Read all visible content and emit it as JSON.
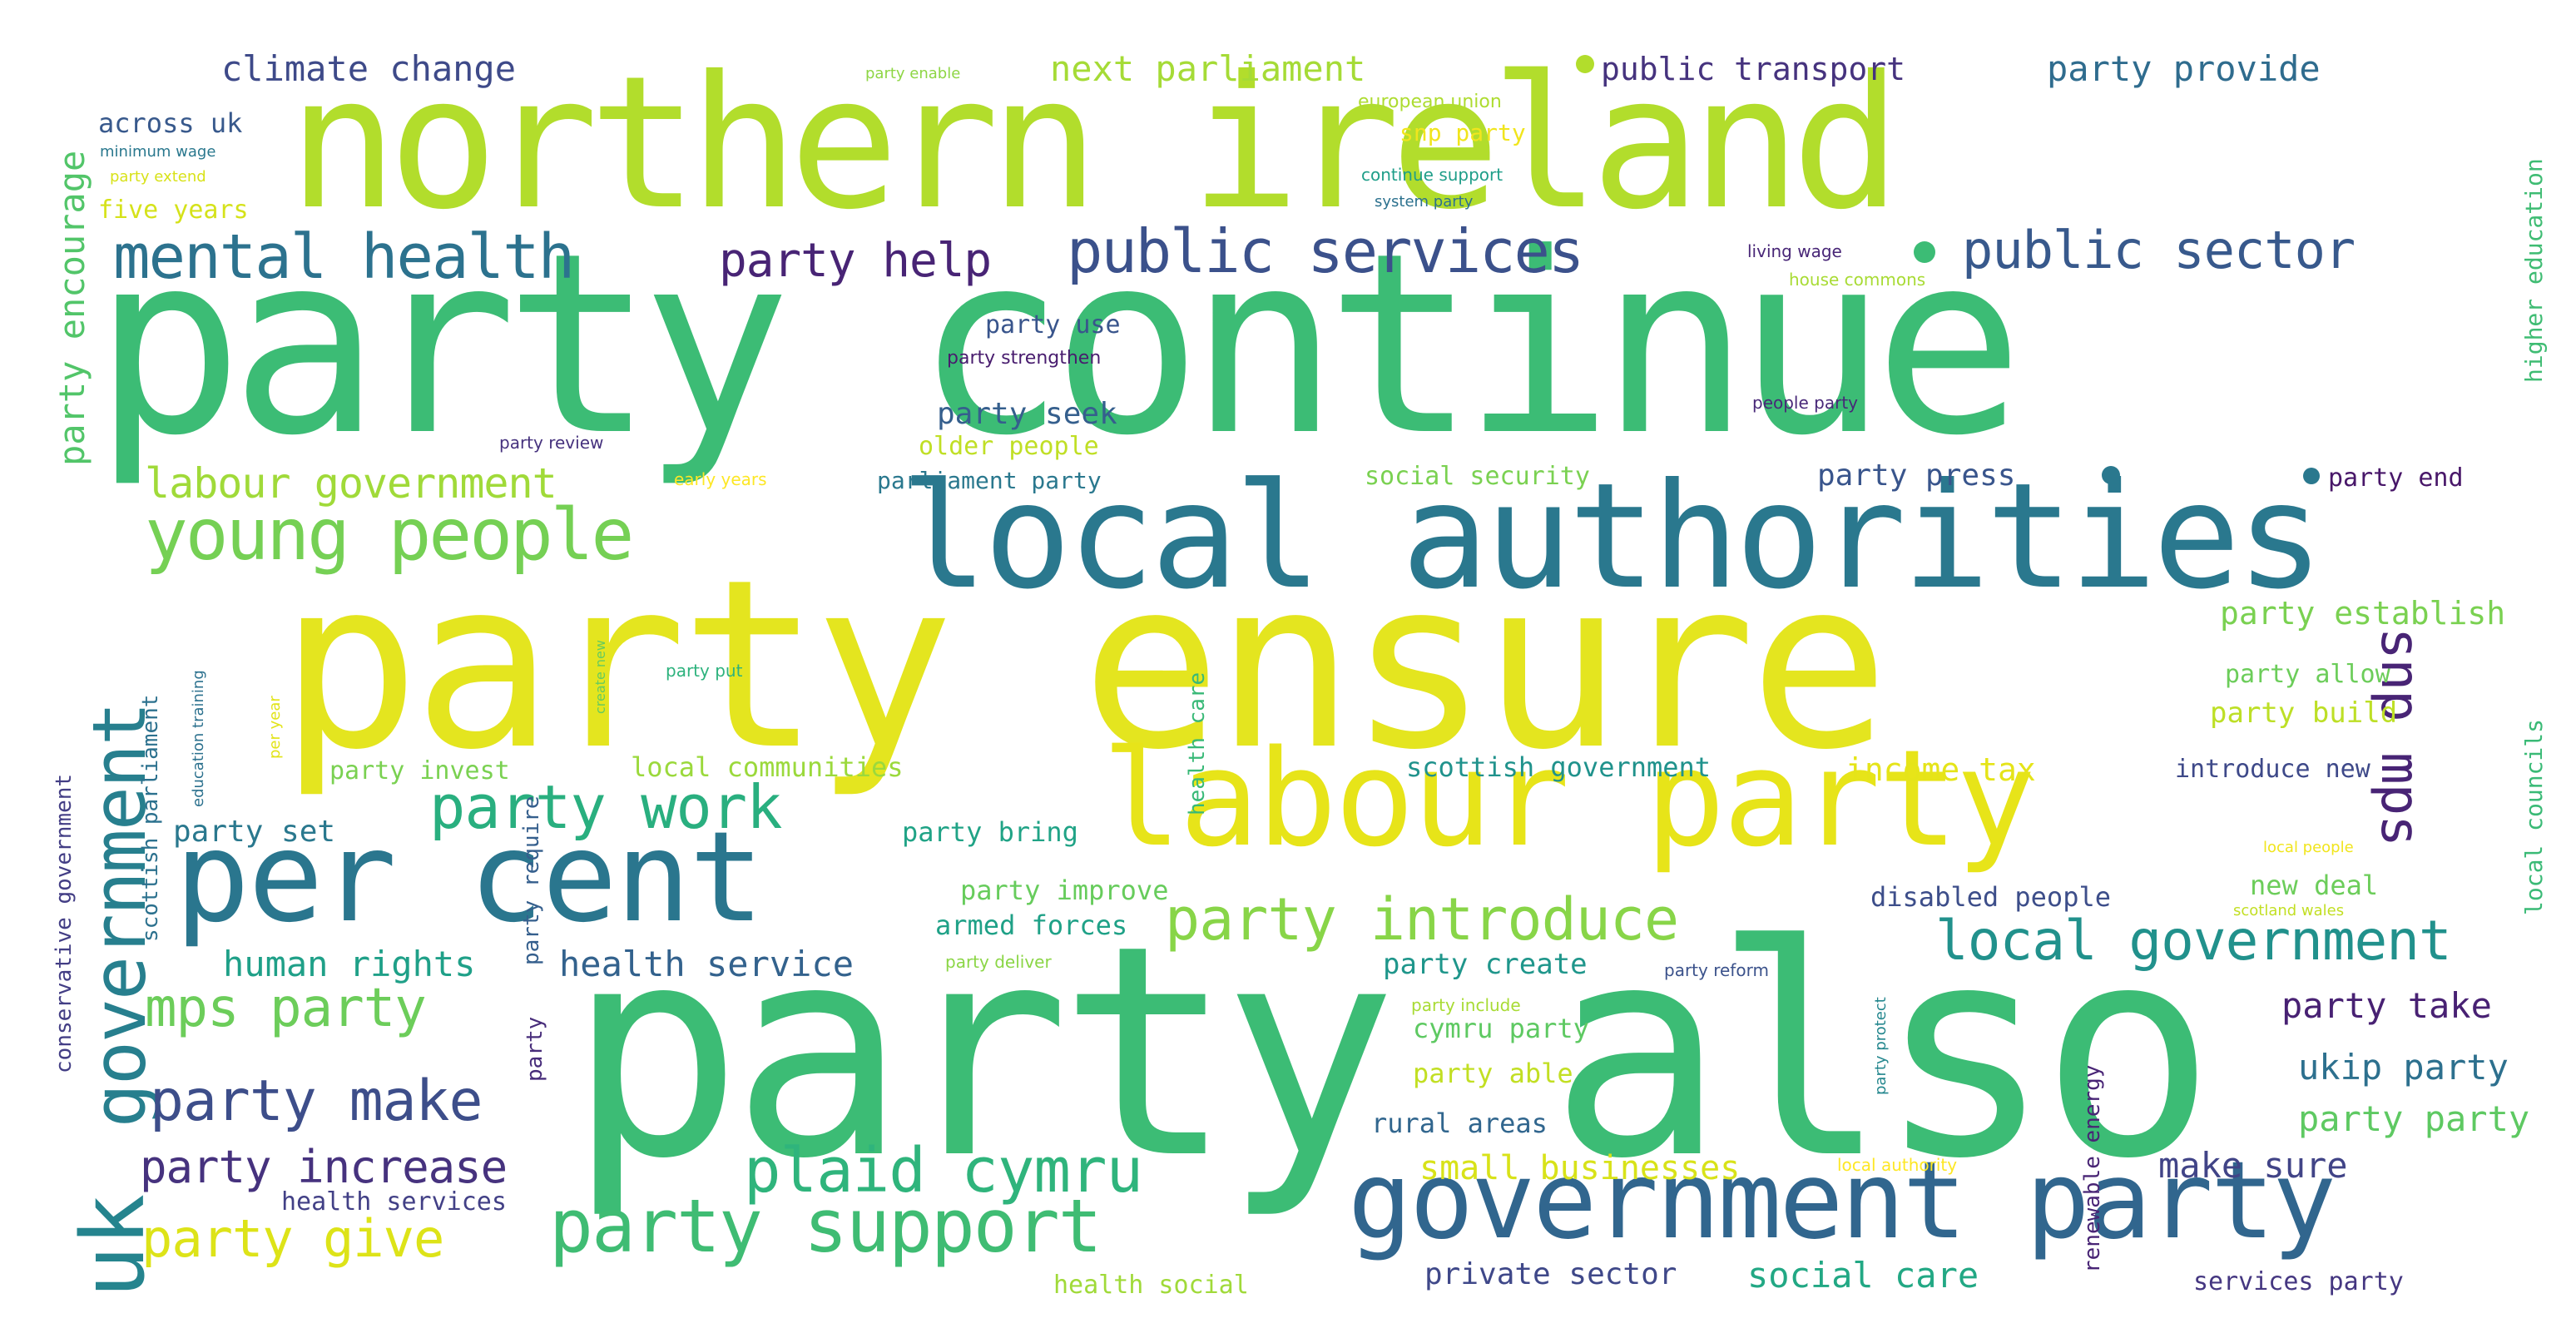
{
  "phrases": [
    {
      "text": "party also",
      "color": "#3cbc75"
    },
    {
      "text": "party continue",
      "color": "#3cbc75"
    },
    {
      "text": "party ensure",
      "color": "#e4e51f"
    },
    {
      "text": "northern ireland",
      "color": "#b2dd2c"
    },
    {
      "text": "local authorities",
      "color": "#2a788e"
    },
    {
      "text": "labour party",
      "color": "#e7e419"
    },
    {
      "text": "government party",
      "color": "#31668e"
    },
    {
      "text": "per cent",
      "color": "#2a768e"
    },
    {
      "text": "young people",
      "color": "#75d054"
    },
    {
      "text": "party support",
      "color": "#3fbc73"
    },
    {
      "text": "party introduce",
      "color": "#88d548"
    },
    {
      "text": "government",
      "color": "#277f8e"
    },
    {
      "text": "uk",
      "color": "#25848e"
    },
    {
      "text": "party work",
      "color": "#29af7f"
    },
    {
      "text": "plaid cymru",
      "color": "#2fb47c"
    },
    {
      "text": "mental health",
      "color": "#2c728e"
    },
    {
      "text": "public services",
      "color": "#3b518b"
    },
    {
      "text": "public sector",
      "color": "#38598c"
    },
    {
      "text": "local government",
      "color": "#21918c"
    },
    {
      "text": "party make",
      "color": "#3d4e8a"
    },
    {
      "text": "mps party",
      "color": "#6ccd5a"
    },
    {
      "text": "party give",
      "color": "#dde318"
    },
    {
      "text": "party increase",
      "color": "#46327e"
    },
    {
      "text": "snp mps",
      "color": "#482475"
    },
    {
      "text": "party help",
      "color": "#482475"
    },
    {
      "text": "labour government",
      "color": "#a0da39"
    },
    {
      "text": "climate change",
      "color": "#3e4a89"
    },
    {
      "text": "next parliament",
      "color": "#a5db36"
    },
    {
      "text": "public transport",
      "color": "#46337e"
    },
    {
      "text": "party provide",
      "color": "#2f6c8e"
    },
    {
      "text": "party encourage",
      "color": "#52c569"
    },
    {
      "text": "human rights",
      "color": "#1fa088"
    },
    {
      "text": "health service",
      "color": "#33628d"
    },
    {
      "text": "party take",
      "color": "#482173"
    },
    {
      "text": "ukip party",
      "color": "#2d708e"
    },
    {
      "text": "party party",
      "color": "#5ec962"
    },
    {
      "text": "make sure",
      "color": "#414487"
    },
    {
      "text": "small businesses",
      "color": "#d8e219"
    },
    {
      "text": "social care",
      "color": "#22a884"
    },
    {
      "text": "private sector",
      "color": "#3f4889"
    },
    {
      "text": "party seek",
      "color": "#355f8d"
    },
    {
      "text": "party use",
      "color": "#39558c"
    },
    {
      "text": "party strengthen",
      "color": "#481c6e"
    },
    {
      "text": "older people",
      "color": "#c0df25"
    },
    {
      "text": "parliament party",
      "color": "#2a788e"
    },
    {
      "text": "social security",
      "color": "#7ad151"
    },
    {
      "text": "party press",
      "color": "#39558c"
    },
    {
      "text": "party end",
      "color": "#481769"
    },
    {
      "text": "party establish",
      "color": "#7ad151"
    },
    {
      "text": "party allow",
      "color": "#6ccd5a"
    },
    {
      "text": "party build",
      "color": "#bddf26"
    },
    {
      "text": "local councils",
      "color": "#3aba76"
    },
    {
      "text": "higher education",
      "color": "#3fbc73"
    },
    {
      "text": "party invest",
      "color": "#7ad151"
    },
    {
      "text": "local communities",
      "color": "#9bd93c"
    },
    {
      "text": "scottish government",
      "color": "#20928c"
    },
    {
      "text": "income tax",
      "color": "#e5e419"
    },
    {
      "text": "introduce new",
      "color": "#3e4989"
    },
    {
      "text": "party set",
      "color": "#2a788e"
    },
    {
      "text": "party bring",
      "color": "#20a386"
    },
    {
      "text": "party improve",
      "color": "#67cc5c"
    },
    {
      "text": "armed forces",
      "color": "#1fa187"
    },
    {
      "text": "party create",
      "color": "#1f968b"
    },
    {
      "text": "disabled people",
      "color": "#3d4e8a"
    },
    {
      "text": "new deal",
      "color": "#6ccd5a"
    },
    {
      "text": "cymru party",
      "color": "#5ec962"
    },
    {
      "text": "party able",
      "color": "#c2df23"
    },
    {
      "text": "rural areas",
      "color": "#31668e"
    },
    {
      "text": "health services",
      "color": "#424086"
    },
    {
      "text": "health social",
      "color": "#a0da39"
    },
    {
      "text": "across uk",
      "color": "#38598c"
    },
    {
      "text": "five years",
      "color": "#d5e21a"
    },
    {
      "text": "snp party",
      "color": "#f1e51d"
    },
    {
      "text": "conservative government",
      "color": "#433e85"
    },
    {
      "text": "scottish parliament",
      "color": "#2c718e"
    },
    {
      "text": "renewable energy",
      "color": "#482475"
    },
    {
      "text": "party require",
      "color": "#355f8d"
    },
    {
      "text": "health care",
      "color": "#38b977"
    },
    {
      "text": "services party",
      "color": "#453781"
    },
    {
      "text": "party",
      "color": "#472c7a"
    },
    {
      "text": "party enable",
      "color": "#8ed645"
    },
    {
      "text": "european union",
      "color": "#addc30"
    },
    {
      "text": "continue support",
      "color": "#1f9e89"
    },
    {
      "text": "system party",
      "color": "#2c718e"
    },
    {
      "text": "minimum wage",
      "color": "#2a788e"
    },
    {
      "text": "party extend",
      "color": "#d8e219"
    },
    {
      "text": "living wage",
      "color": "#482677"
    },
    {
      "text": "house commons",
      "color": "#a8db34"
    },
    {
      "text": "people party",
      "color": "#482878"
    },
    {
      "text": "party review",
      "color": "#46327e"
    },
    {
      "text": "early years",
      "color": "#fde725"
    },
    {
      "text": "create new",
      "color": "#65cb5e"
    },
    {
      "text": "party put",
      "color": "#2db27d"
    },
    {
      "text": "per year",
      "color": "#e2e418"
    },
    {
      "text": "education training",
      "color": "#2c718e"
    },
    {
      "text": "party deliver",
      "color": "#8bd646"
    },
    {
      "text": "party reform",
      "color": "#3b528b"
    },
    {
      "text": "party include",
      "color": "#a8db34"
    },
    {
      "text": "party protect",
      "color": "#24878e"
    },
    {
      "text": "local authority",
      "color": "#fde725"
    },
    {
      "text": "local people",
      "color": "#f1e51d"
    },
    {
      "text": "scotland wales",
      "color": "#c2df23"
    }
  ]
}
